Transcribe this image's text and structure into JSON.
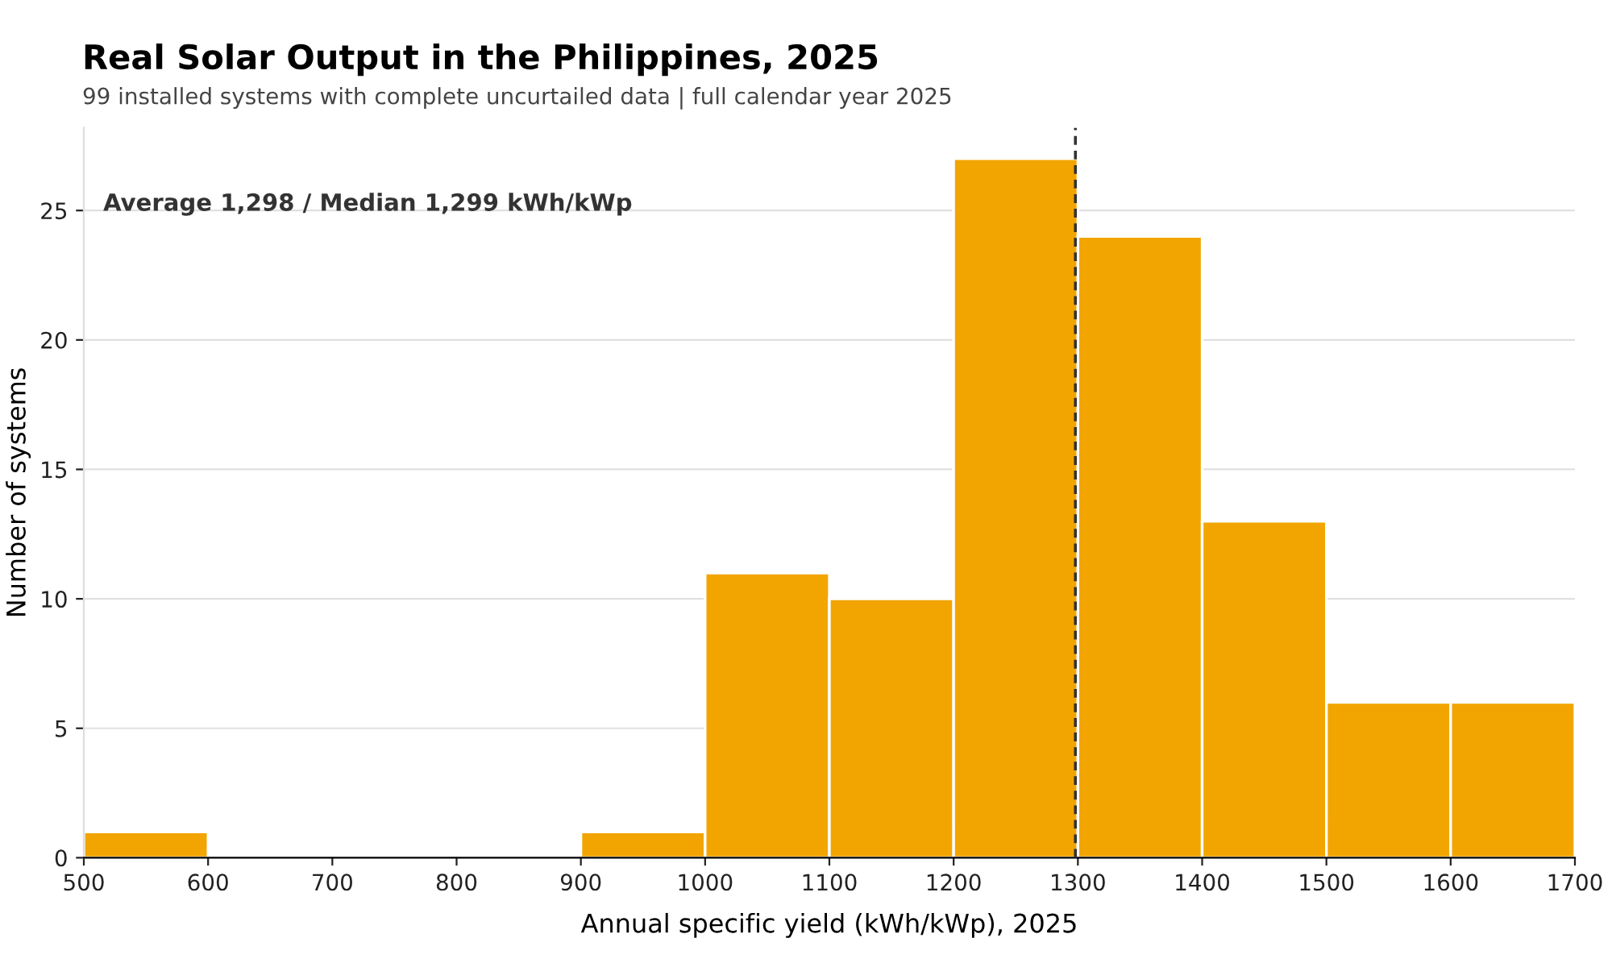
{
  "chart_data": {
    "type": "histogram",
    "title": "Real Solar Output in the Philippines, 2025",
    "subtitle": "99 installed systems with complete uncurtailed data | full calendar year 2025",
    "xlabel": "Annual specific yield (kWh/kWp), 2025",
    "ylabel": "Number of systems",
    "bins": [
      500,
      600,
      700,
      800,
      900,
      1000,
      1100,
      1200,
      1300,
      1400,
      1500,
      1600,
      1700
    ],
    "values": [
      1,
      0,
      0,
      0,
      1,
      11,
      10,
      27,
      24,
      13,
      6,
      6
    ],
    "color": "#f2a500",
    "xlim": [
      500,
      1700
    ],
    "xticks": [
      500,
      600,
      700,
      800,
      900,
      1000,
      1100,
      1200,
      1300,
      1400,
      1500,
      1600,
      1700
    ],
    "ylim": [
      0,
      28.2
    ],
    "yticks": [
      0,
      5,
      10,
      15,
      20,
      25
    ],
    "grid": "y",
    "ref_lines": [
      {
        "axis": "x",
        "value": 1298,
        "label": null,
        "color": "#333333",
        "line_style": "dashed"
      }
    ],
    "annotations": [
      "Average 1,298 / Median 1,299 kWh/kWp"
    ]
  }
}
